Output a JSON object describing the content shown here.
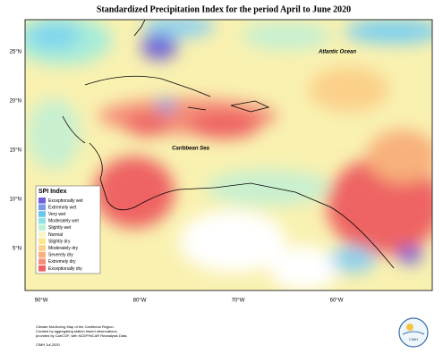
{
  "map": {
    "title": "Standardized Precipitation Index for the period April to June 2020",
    "labels": [
      "Atlantic Ocean",
      "Caribbean Sea"
    ],
    "lat_labels": [
      "25°N",
      "20°N",
      "15°N",
      "10°N",
      "5°N"
    ],
    "lon_labels": [
      "90°W",
      "80°W",
      "70°W",
      "60°W"
    ],
    "legend": {
      "title": "SPI Index",
      "items": [
        {
          "label": "Exceptionally wet",
          "color": "#7060d8"
        },
        {
          "label": "Extremely wet",
          "color": "#7a9ae6"
        },
        {
          "label": "Very wet",
          "color": "#6cc6ec"
        },
        {
          "label": "Moderately wet",
          "color": "#90e2e0"
        },
        {
          "label": "Slightly wet",
          "color": "#bff2d2"
        },
        {
          "label": "Normal",
          "color": "#f8f6c8"
        },
        {
          "label": "Slightly dry",
          "color": "#fbe68e"
        },
        {
          "label": "Moderately dry",
          "color": "#fbd08a"
        },
        {
          "label": "Severely dry",
          "color": "#f8b07c"
        },
        {
          "label": "Extremely dry",
          "color": "#f48e78"
        },
        {
          "label": "Exceptionally dry",
          "color": "#ee6464"
        }
      ]
    }
  },
  "footer": {
    "lines": [
      "Climate Monitoring Map of the Caribbean Region.",
      "Created by aggregating station based observations,",
      "provided by CariCOF, with NCEP/NCAR Reanalysis Data."
    ],
    "credit": "CIMH Jul-2020",
    "logo": "CIMH"
  }
}
